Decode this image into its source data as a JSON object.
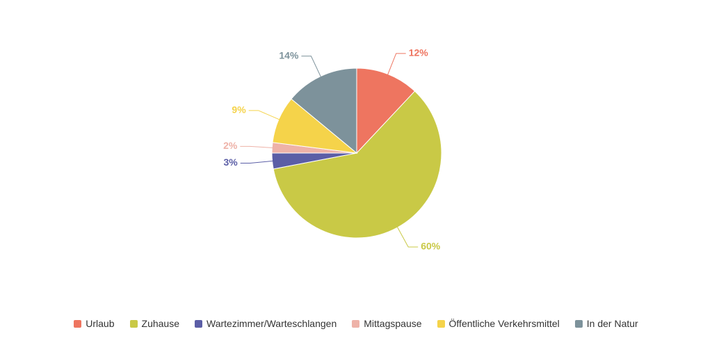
{
  "chart_data": {
    "type": "pie",
    "categories": [
      "Urlaub",
      "Zuhause",
      "Wartezimmer/Warteschlangen",
      "Mittagspause",
      "Öffentliche Verkehrsmittel",
      "In der Natur"
    ],
    "values": [
      12,
      60,
      3,
      2,
      9,
      14
    ],
    "value_labels": [
      "12%",
      "60%",
      "3%",
      "2%",
      "9%",
      "14%"
    ],
    "colors": [
      "#ee7560",
      "#c9c946",
      "#5b5ea6",
      "#eeb2a8",
      "#f5d34a",
      "#7d929b"
    ],
    "legend": "bottom"
  }
}
